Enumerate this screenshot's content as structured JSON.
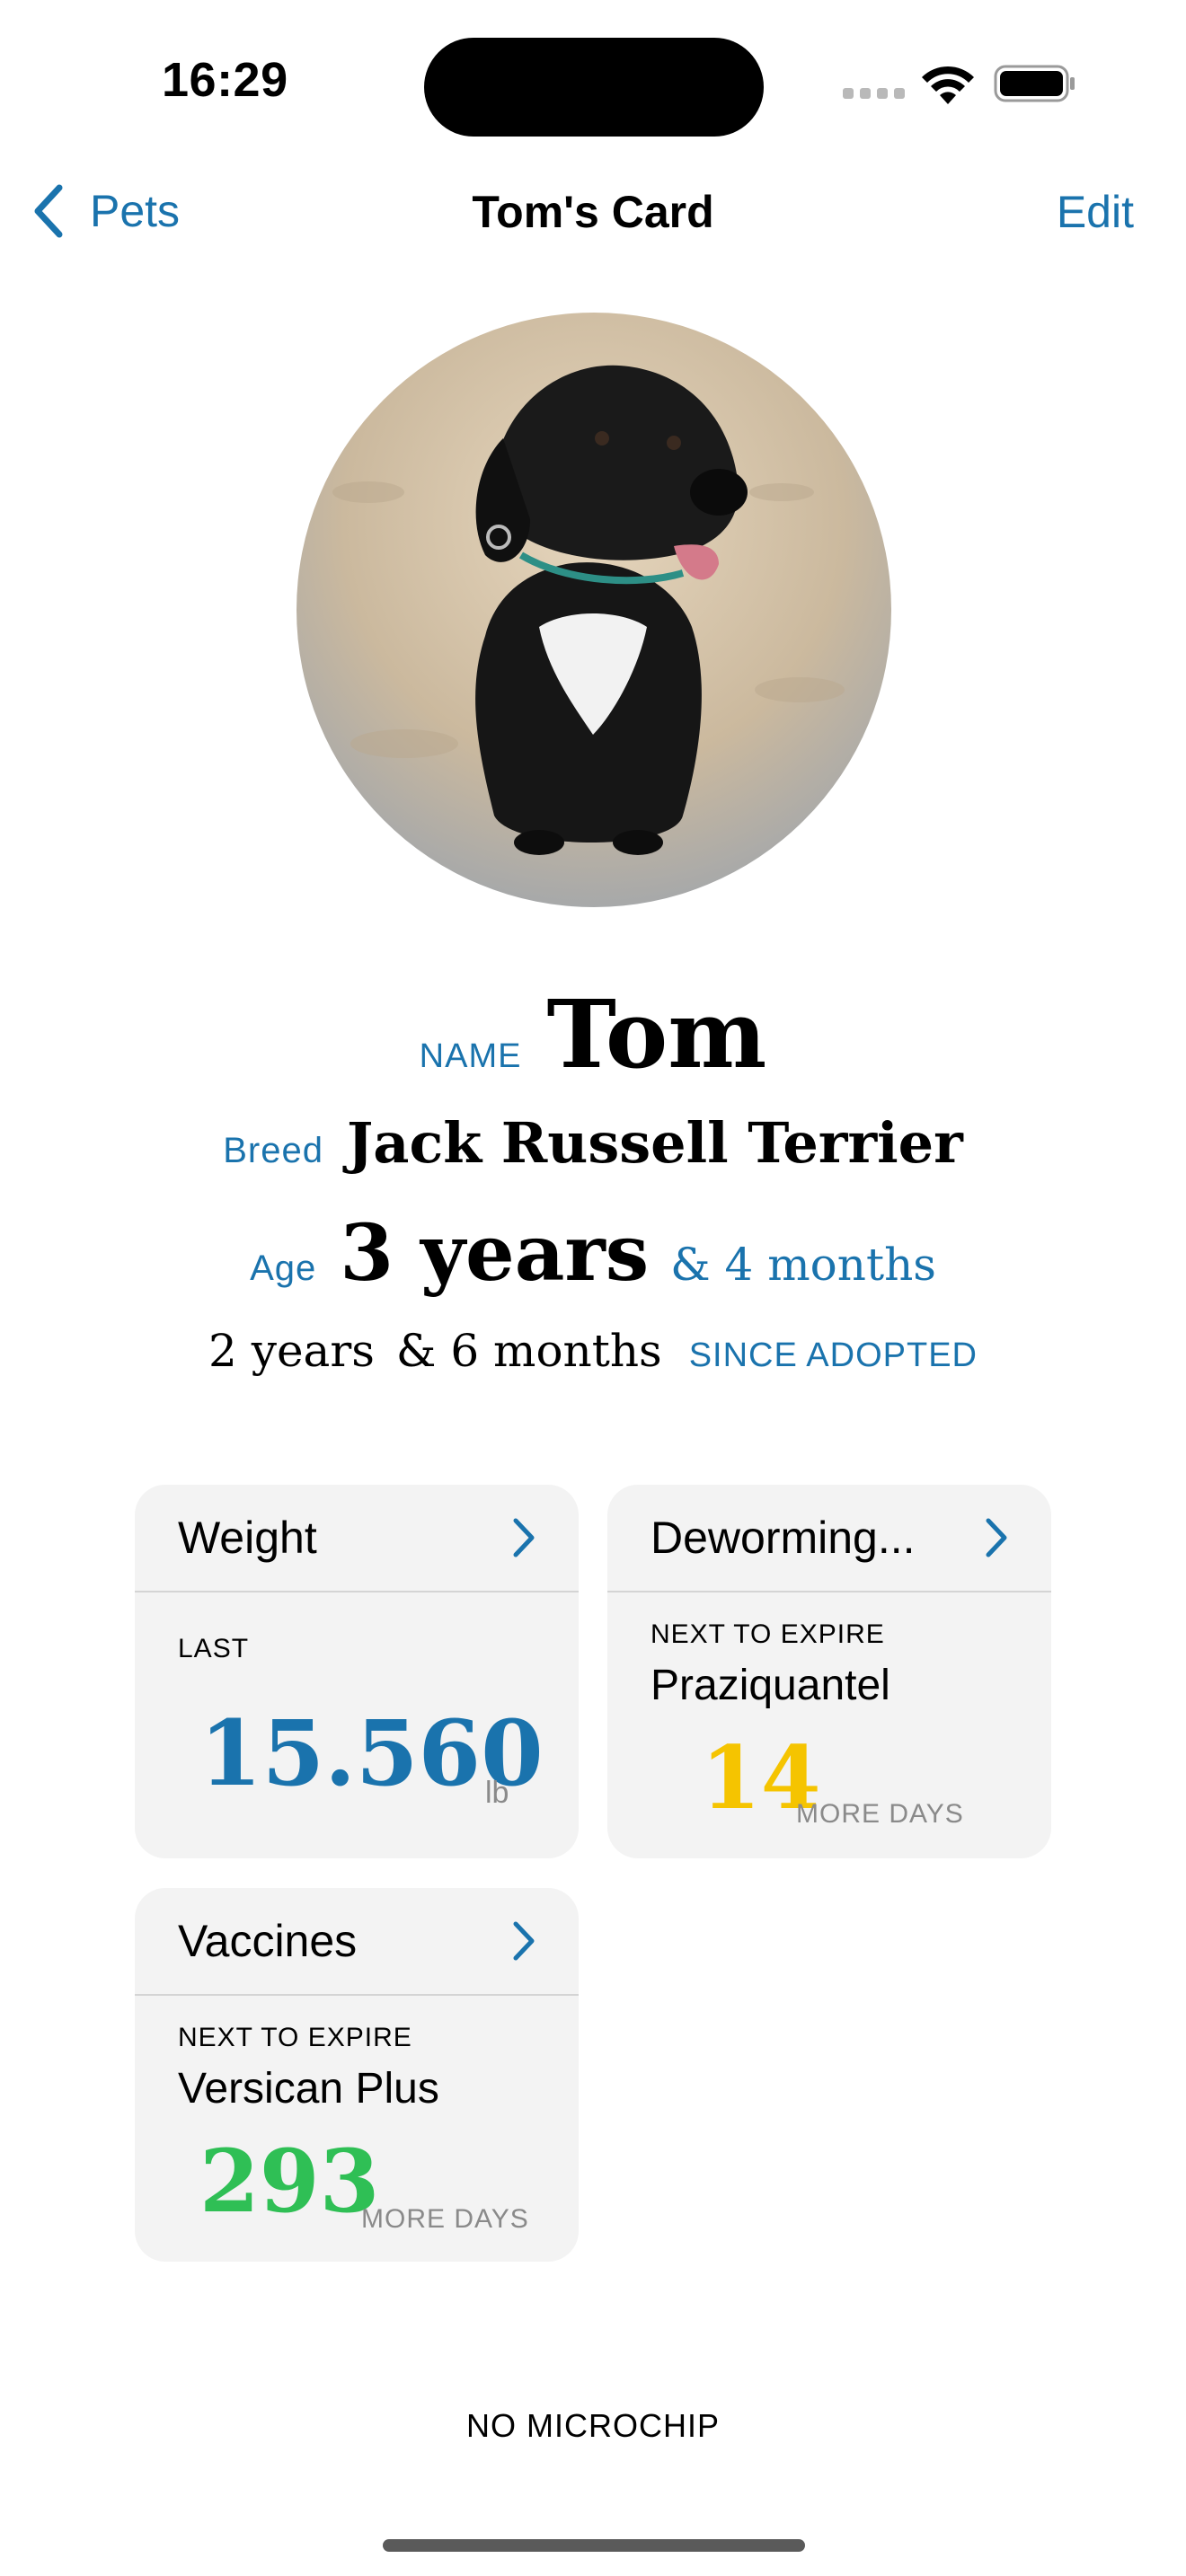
{
  "status_bar": {
    "time": "16:29"
  },
  "nav": {
    "back_label": "Pets",
    "title": "Tom's Card",
    "edit_label": "Edit"
  },
  "profile": {
    "photo_icon": "dog-photo",
    "name_label": "NAME",
    "name": "Tom",
    "breed_label": "Breed",
    "breed": "Jack Russell Terrier",
    "age_label": "Age",
    "age_years": "3 years",
    "age_months": "& 4 months",
    "adopted_years": "2 years",
    "adopted_months": "& 6 months",
    "adopted_label": "SINCE ADOPTED"
  },
  "cards": {
    "weight": {
      "title": "Weight",
      "sub": "LAST",
      "value": "15.560",
      "unit": "lb",
      "color": "#1a73ad"
    },
    "deworming": {
      "title": "Deworming...",
      "sub": "NEXT TO EXPIRE",
      "item": "Praziquantel",
      "value": "14",
      "unit": "MORE DAYS",
      "color": "#f5c400"
    },
    "vaccines": {
      "title": "Vaccines",
      "sub": "NEXT TO EXPIRE",
      "item": "Versican Plus",
      "value": "293",
      "unit": "MORE DAYS",
      "color": "#2fbf55"
    }
  },
  "footer": {
    "microchip": "NO MICROCHIP"
  },
  "colors": {
    "accent": "#1a73ad",
    "card_bg": "#f3f3f3"
  }
}
